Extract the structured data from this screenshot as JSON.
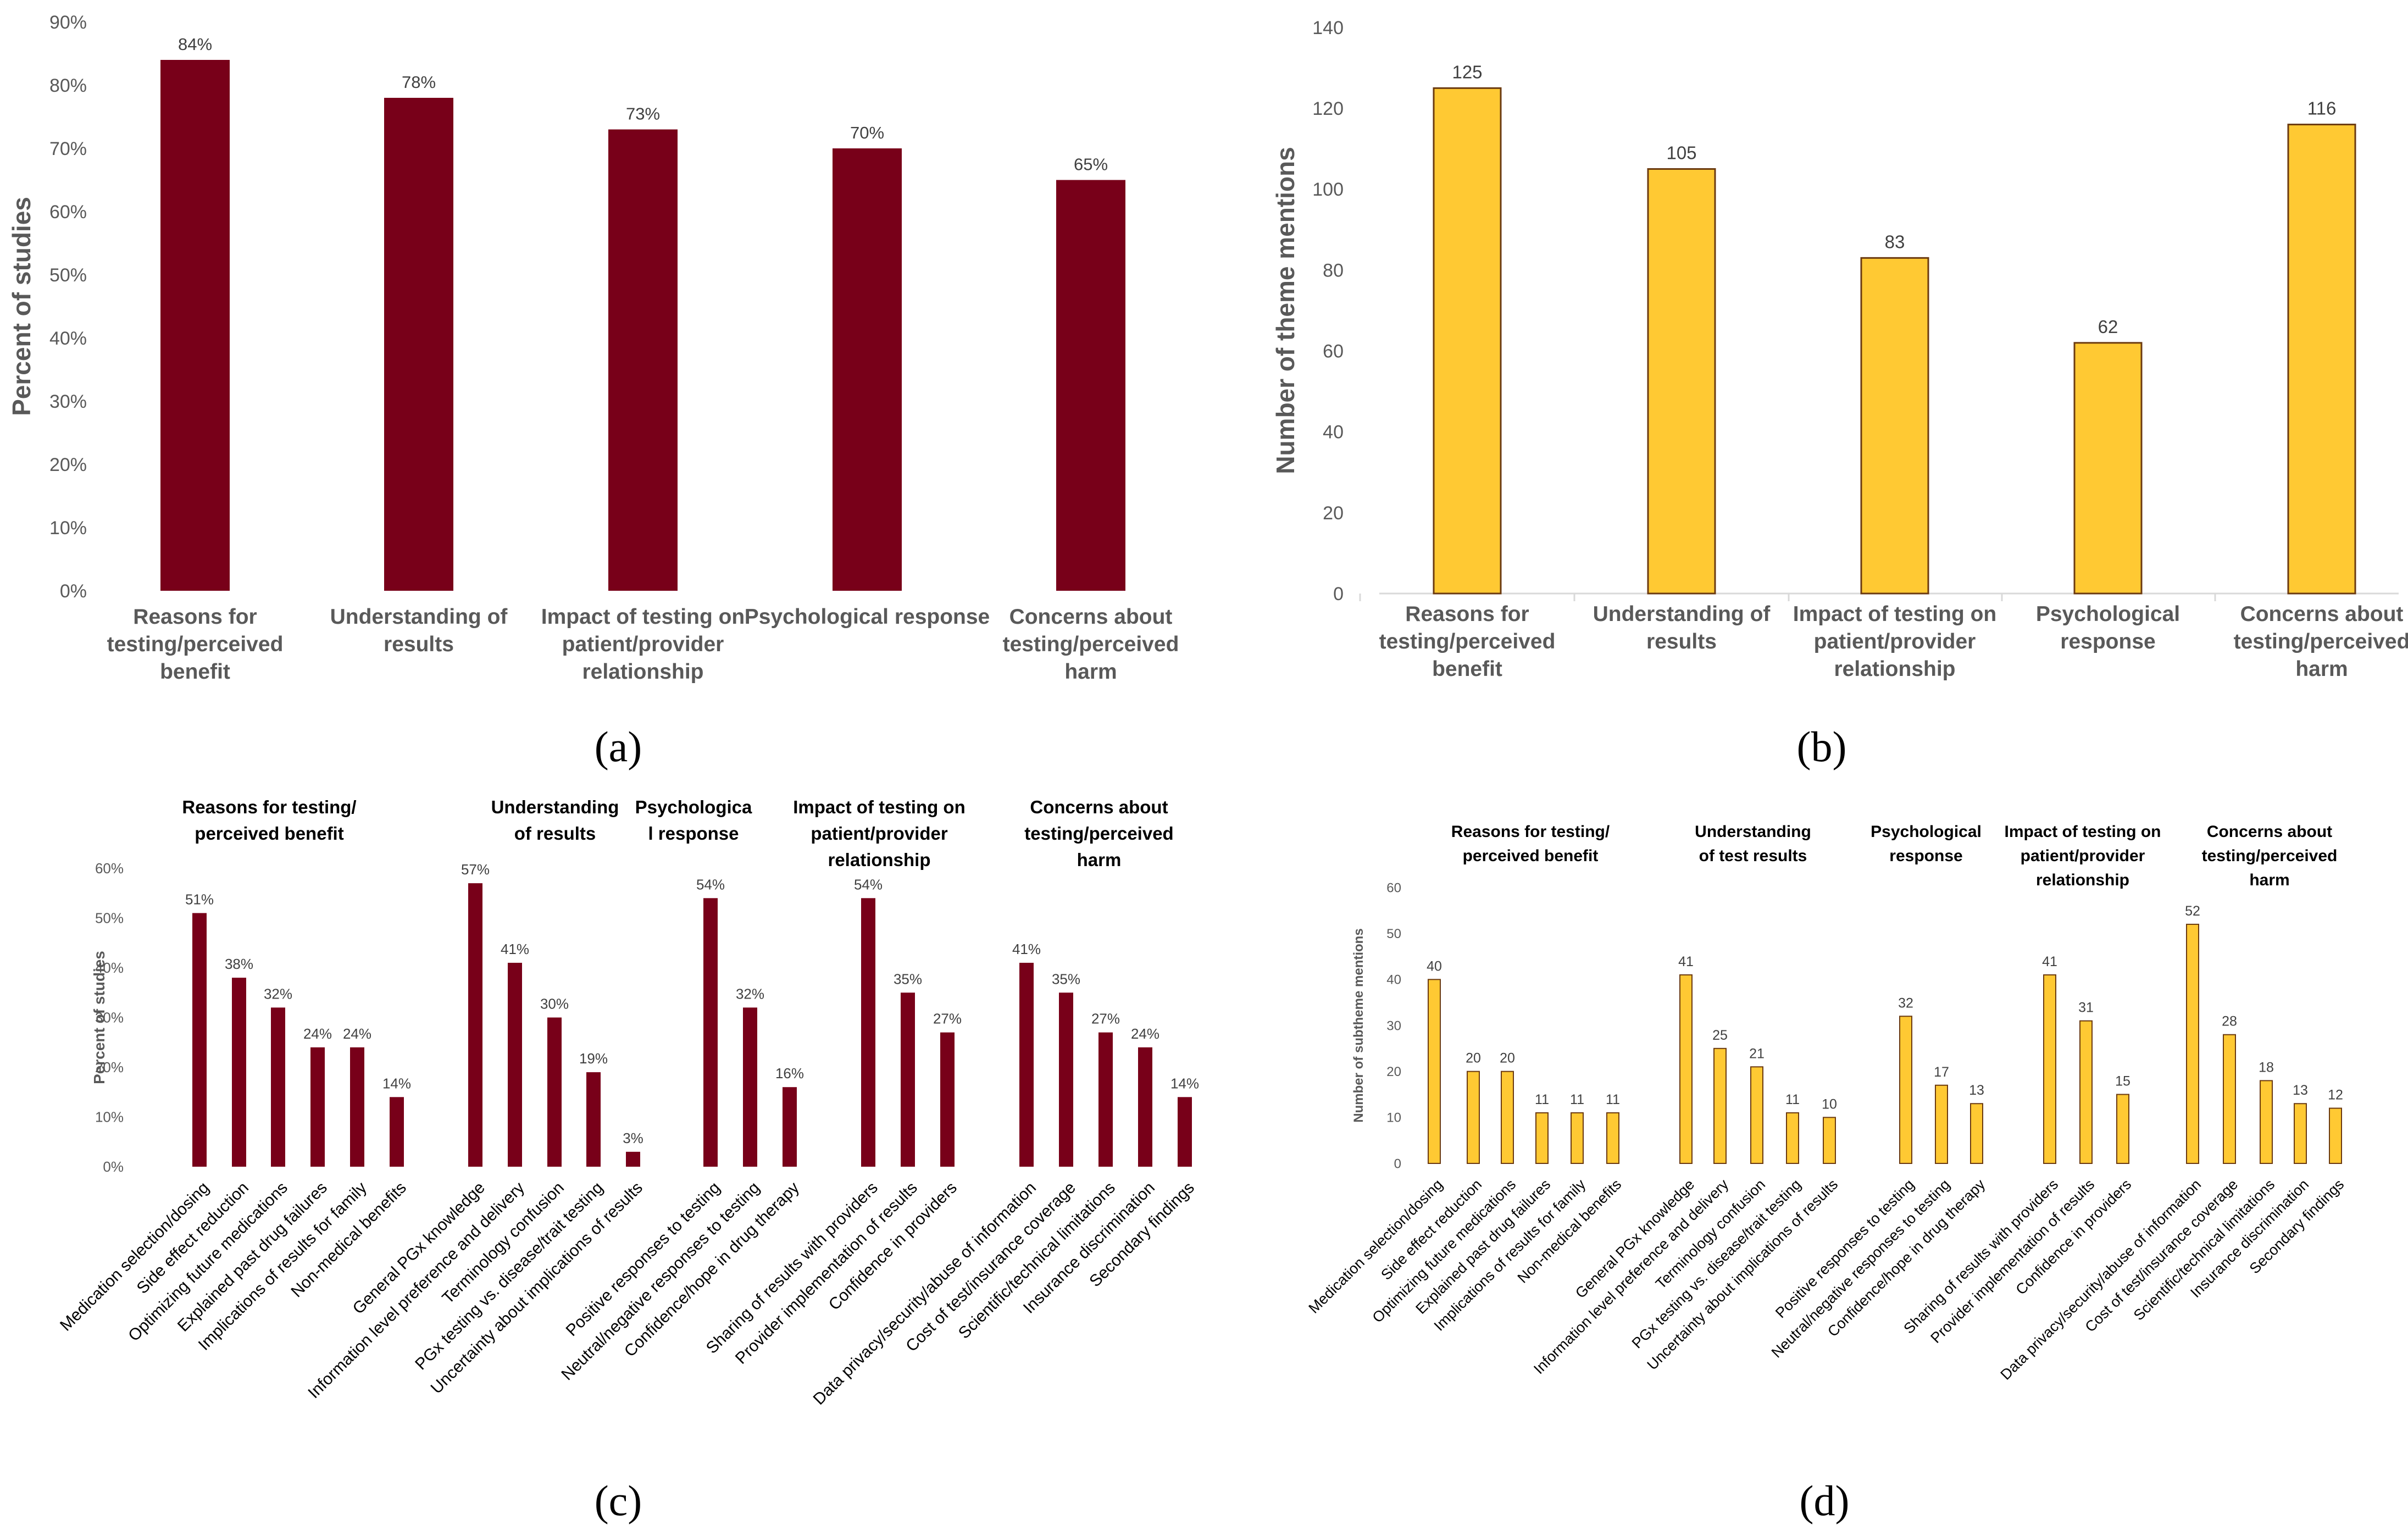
{
  "colors": {
    "maroon": "#780019",
    "gold": "#ffc933",
    "gold_stroke": "#6b3a10",
    "axis_text": "#595959",
    "grid_axis": "#d9d9d9"
  },
  "panel_labels": [
    "(a)",
    "(b)",
    "(c)",
    "(d)"
  ],
  "chart_data": [
    {
      "id": "a",
      "type": "bar",
      "ylabel": "Percent of studies",
      "ylim": [
        0,
        90
      ],
      "ytick_step": 10,
      "ytick_suffix": "%",
      "categories": [
        "Reasons for testing/perceived benefit",
        "Understanding of results",
        "Impact of testing on patient/provider relationship",
        "Psychological response",
        "Concerns about testing/perceived harm"
      ],
      "category_lines": [
        [
          "Reasons for",
          "testing/perceived",
          "benefit"
        ],
        [
          "Understanding of",
          "results"
        ],
        [
          "Impact of testing on",
          "patient/provider",
          "relationship"
        ],
        [
          "Psychological response"
        ],
        [
          "Concerns about",
          "testing/perceived",
          "harm"
        ]
      ],
      "values": [
        84,
        78,
        73,
        70,
        65
      ],
      "data_labels": [
        "84%",
        "78%",
        "73%",
        "70%",
        "65%"
      ]
    },
    {
      "id": "b",
      "type": "bar",
      "ylabel": "Number of theme mentions",
      "ylim": [
        0,
        140
      ],
      "ytick_step": 20,
      "ytick_suffix": "",
      "categories": [
        "Reasons for testing/perceived benefit",
        "Understanding of results",
        "Impact of testing on patient/provider relationship",
        "Psychological response",
        "Concerns about testing/perceived harm"
      ],
      "category_lines": [
        [
          "Reasons for",
          "testing/perceived",
          "benefit"
        ],
        [
          "Understanding of",
          "results"
        ],
        [
          "Impact of testing on",
          "patient/provider",
          "relationship"
        ],
        [
          "Psychological",
          "response"
        ],
        [
          "Concerns about",
          "testing/perceived",
          "harm"
        ]
      ],
      "values": [
        125,
        105,
        83,
        62,
        116
      ],
      "data_labels": [
        "125",
        "105",
        "83",
        "62",
        "116"
      ]
    },
    {
      "id": "c",
      "type": "bar",
      "ylabel": "Percent of studies",
      "ylim": [
        0,
        60
      ],
      "ytick_step": 10,
      "ytick_suffix": "%",
      "groups": [
        {
          "title_lines": [
            "Reasons for testing/",
            "perceived benefit"
          ],
          "items": [
            {
              "label": "Medication selection/dosing",
              "value": 51,
              "text": "51%"
            },
            {
              "label": "Side effect reduction",
              "value": 38,
              "text": "38%"
            },
            {
              "label": "Optimizing future medications",
              "value": 32,
              "text": "32%"
            },
            {
              "label": "Explained past drug failures",
              "value": 24,
              "text": "24%"
            },
            {
              "label": "Implications of results for family",
              "value": 24,
              "text": "24%"
            },
            {
              "label": "Non-medical benefits",
              "value": 14,
              "text": "14%"
            }
          ]
        },
        {
          "title_lines": [
            "Understanding",
            "of results"
          ],
          "items": [
            {
              "label": "General PGx knowledge",
              "value": 57,
              "text": "57%"
            },
            {
              "label": "Information level preference and delivery",
              "value": 41,
              "text": "41%"
            },
            {
              "label": "Terminology confusion",
              "value": 30,
              "text": "30%"
            },
            {
              "label": "PGx testing vs. disease/trait testing",
              "value": 19,
              "text": "19%"
            },
            {
              "label": "Uncertainty about implications of results",
              "value": 3,
              "text": "3%"
            }
          ]
        },
        {
          "title_lines": [
            "Psychologica",
            "l response"
          ],
          "items": [
            {
              "label": "Positive responses to testing",
              "value": 54,
              "text": "54%"
            },
            {
              "label": "Neutral/negative responses to testing",
              "value": 32,
              "text": "32%"
            },
            {
              "label": "Confidence/hope in drug therapy",
              "value": 16,
              "text": "16%"
            }
          ]
        },
        {
          "title_lines": [
            "Impact of testing on",
            "patient/provider",
            "relationship"
          ],
          "items": [
            {
              "label": "Sharing of results with providers",
              "value": 54,
              "text": "54%"
            },
            {
              "label": "Provider implementation of results",
              "value": 35,
              "text": "35%"
            },
            {
              "label": "Confidence in providers",
              "value": 27,
              "text": "27%"
            }
          ]
        },
        {
          "title_lines": [
            "Concerns about",
            "testing/perceived",
            "harm"
          ],
          "items": [
            {
              "label": "Data privacy/security/abuse of information",
              "value": 41,
              "text": "41%"
            },
            {
              "label": "Cost of test/insurance coverage",
              "value": 35,
              "text": "35%"
            },
            {
              "label": "Scientific/technical limitations",
              "value": 27,
              "text": "27%"
            },
            {
              "label": "Insurance discrimination",
              "value": 24,
              "text": "24%"
            },
            {
              "label": "Secondary findings",
              "value": 14,
              "text": "14%"
            }
          ]
        }
      ]
    },
    {
      "id": "d",
      "type": "bar",
      "ylabel": "Number of subtheme mentions",
      "ylim": [
        0,
        60
      ],
      "ytick_step": 10,
      "ytick_suffix": "",
      "groups": [
        {
          "title_lines": [
            "Reasons for testing/",
            "perceived benefit"
          ],
          "items": [
            {
              "label": "Medication selection/dosing",
              "value": 40,
              "text": "40"
            },
            {
              "label": "Side effect reduction",
              "value": 20,
              "text": "20"
            },
            {
              "label": "Optimizing future medications",
              "value": 20,
              "text": "20"
            },
            {
              "label": "Explained past drug failures",
              "value": 11,
              "text": "11"
            },
            {
              "label": "Implications of results for family",
              "value": 11,
              "text": "11"
            },
            {
              "label": "Non-medical benefits",
              "value": 11,
              "text": "11"
            }
          ]
        },
        {
          "title_lines": [
            "Understanding",
            "of test results"
          ],
          "items": [
            {
              "label": "General PGx knowledge",
              "value": 41,
              "text": "41"
            },
            {
              "label": "Information level preference and delivery",
              "value": 25,
              "text": "25"
            },
            {
              "label": "Terminology confusion",
              "value": 21,
              "text": "21"
            },
            {
              "label": "PGx testing vs. disease/trait testing",
              "value": 11,
              "text": "11"
            },
            {
              "label": "Uncertainty about implications of results",
              "value": 10,
              "text": "10"
            }
          ]
        },
        {
          "title_lines": [
            "Psychological",
            "response"
          ],
          "items": [
            {
              "label": "Positive responses to testing",
              "value": 32,
              "text": "32"
            },
            {
              "label": "Neutral/negative responses to testing",
              "value": 17,
              "text": "17"
            },
            {
              "label": "Confidence/hope in drug therapy",
              "value": 13,
              "text": "13"
            }
          ]
        },
        {
          "title_lines": [
            "Impact of testing on",
            "patient/provider",
            "relationship"
          ],
          "items": [
            {
              "label": "Sharing of results with providers",
              "value": 41,
              "text": "41"
            },
            {
              "label": "Provider implementation of results",
              "value": 31,
              "text": "31"
            },
            {
              "label": "Confidence in providers",
              "value": 15,
              "text": "15"
            }
          ]
        },
        {
          "title_lines": [
            "Concerns about",
            "testing/perceived",
            "harm"
          ],
          "items": [
            {
              "label": "Data privacy/security/abuse of information",
              "value": 52,
              "text": "52"
            },
            {
              "label": "Cost of test/insurance coverage",
              "value": 28,
              "text": "28"
            },
            {
              "label": "Scientific/technical limitations",
              "value": 18,
              "text": "18"
            },
            {
              "label": "Insurance discrimination",
              "value": 13,
              "text": "13"
            },
            {
              "label": "Secondary findings",
              "value": 12,
              "text": "12"
            }
          ]
        }
      ]
    }
  ]
}
